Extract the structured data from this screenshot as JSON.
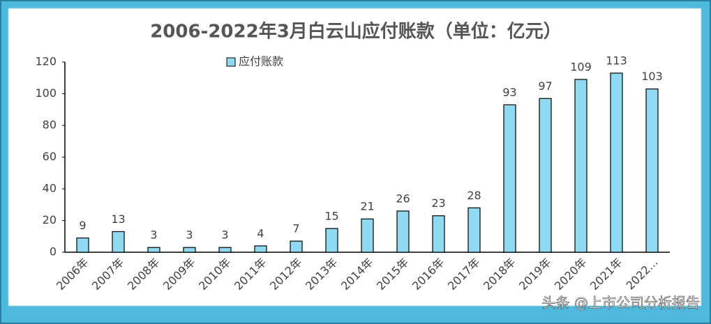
{
  "chart_data": {
    "type": "bar",
    "title": "2006-2022年3月白云山应付账款（单位：亿元）",
    "categories": [
      "2006年",
      "2007年",
      "2008年",
      "2009年",
      "2010年",
      "2011年",
      "2012年",
      "2013年",
      "2014年",
      "2015年",
      "2016年",
      "2017年",
      "2018年",
      "2019年",
      "2020年",
      "2021年",
      "2022..."
    ],
    "series": [
      {
        "name": "应付账款",
        "color": "#8fdaf2",
        "values": [
          9,
          13,
          3,
          3,
          3,
          4,
          7,
          15,
          21,
          26,
          23,
          28,
          93,
          97,
          109,
          113,
          103
        ]
      }
    ],
    "ylim": [
      0,
      120
    ],
    "yticks": [
      0,
      20,
      40,
      60,
      80,
      100,
      120
    ],
    "grid": false,
    "legend": "top",
    "watermark": "头条 @上市公司分析报告"
  }
}
